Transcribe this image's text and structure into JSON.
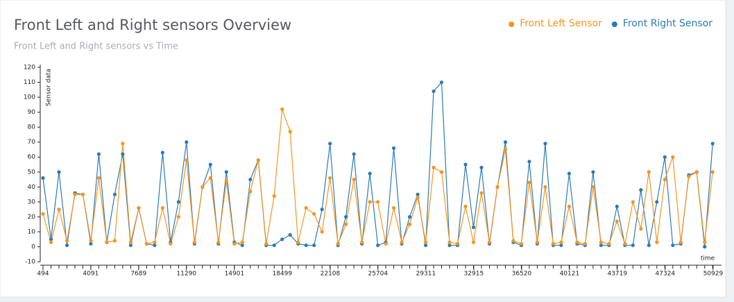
{
  "chart_data": {
    "type": "line",
    "title": "Front Left and Right sensors Overview",
    "subtitle": "Front Left and Right sensors vs Time",
    "y_label": "Sensor data",
    "x_label": "time",
    "xlim": [
      494,
      51300
    ],
    "ylim": [
      -10,
      120
    ],
    "yticks": [
      -10,
      0,
      10,
      20,
      30,
      40,
      50,
      60,
      70,
      80,
      90,
      100,
      110,
      120
    ],
    "xticks": [
      494,
      4091,
      7689,
      11290,
      14901,
      18499,
      22108,
      25704,
      29311,
      32915,
      36520,
      40121,
      43719,
      47324,
      50929
    ],
    "legend": "top-right",
    "x": [
      494,
      1094,
      1694,
      2294,
      2894,
      3494,
      4094,
      4694,
      5294,
      5894,
      6494,
      7094,
      7694,
      8294,
      8894,
      9494,
      10094,
      10694,
      11294,
      11894,
      12494,
      13094,
      13694,
      14294,
      14894,
      15494,
      16094,
      16694,
      17294,
      17894,
      18494,
      19094,
      19694,
      20294,
      20894,
      21494,
      22094,
      22694,
      23294,
      23894,
      24494,
      25094,
      25694,
      26294,
      26894,
      27494,
      28094,
      28694,
      29294,
      29894,
      30494,
      31094,
      31694,
      32294,
      32894,
      33494,
      34094,
      34694,
      35294,
      35894,
      36494,
      37094,
      37694,
      38294,
      38894,
      39494,
      40094,
      40694,
      41294,
      41894,
      42494,
      43094,
      43694,
      44294,
      44894,
      45494,
      46094,
      46694,
      47294,
      47894,
      48494,
      49094,
      49694,
      50294,
      50894
    ],
    "series": [
      {
        "name": "Front Right Sensor",
        "color": "#2a7ab8",
        "values": [
          46,
          5,
          50,
          1,
          36,
          35,
          2,
          62,
          3,
          35,
          62,
          1,
          26,
          2,
          1,
          63,
          3,
          30,
          70,
          2,
          40,
          55,
          2,
          50,
          3,
          1,
          45,
          58,
          1,
          1,
          5,
          8,
          2,
          1,
          1,
          25,
          69,
          1,
          20,
          62,
          2,
          49,
          1,
          3,
          66,
          2,
          20,
          35,
          1,
          104,
          110,
          1,
          1,
          55,
          13,
          53,
          2,
          40,
          70,
          3,
          1,
          57,
          2,
          69,
          1,
          1,
          49,
          2,
          1,
          50,
          1,
          1,
          27,
          1,
          1,
          38,
          1,
          30,
          60,
          1,
          2,
          48,
          50,
          0,
          69
        ]
      },
      {
        "name": "Front Left Sensor",
        "color": "#f7941d",
        "values": [
          22,
          3,
          25,
          4,
          35,
          35,
          4,
          46,
          3,
          4,
          69,
          3,
          26,
          2,
          3,
          26,
          2,
          20,
          58,
          3,
          40,
          46,
          3,
          44,
          2,
          3,
          37,
          58,
          2,
          34,
          92,
          77,
          3,
          26,
          22,
          10,
          46,
          2,
          15,
          45,
          3,
          30,
          30,
          2,
          26,
          3,
          15,
          33,
          3,
          53,
          50,
          3,
          2,
          27,
          3,
          36,
          3,
          40,
          65,
          4,
          2,
          43,
          3,
          40,
          2,
          3,
          27,
          3,
          2,
          40,
          3,
          2,
          17,
          2,
          30,
          12,
          50,
          3,
          45,
          60,
          3,
          47,
          50,
          3,
          50
        ]
      }
    ]
  }
}
